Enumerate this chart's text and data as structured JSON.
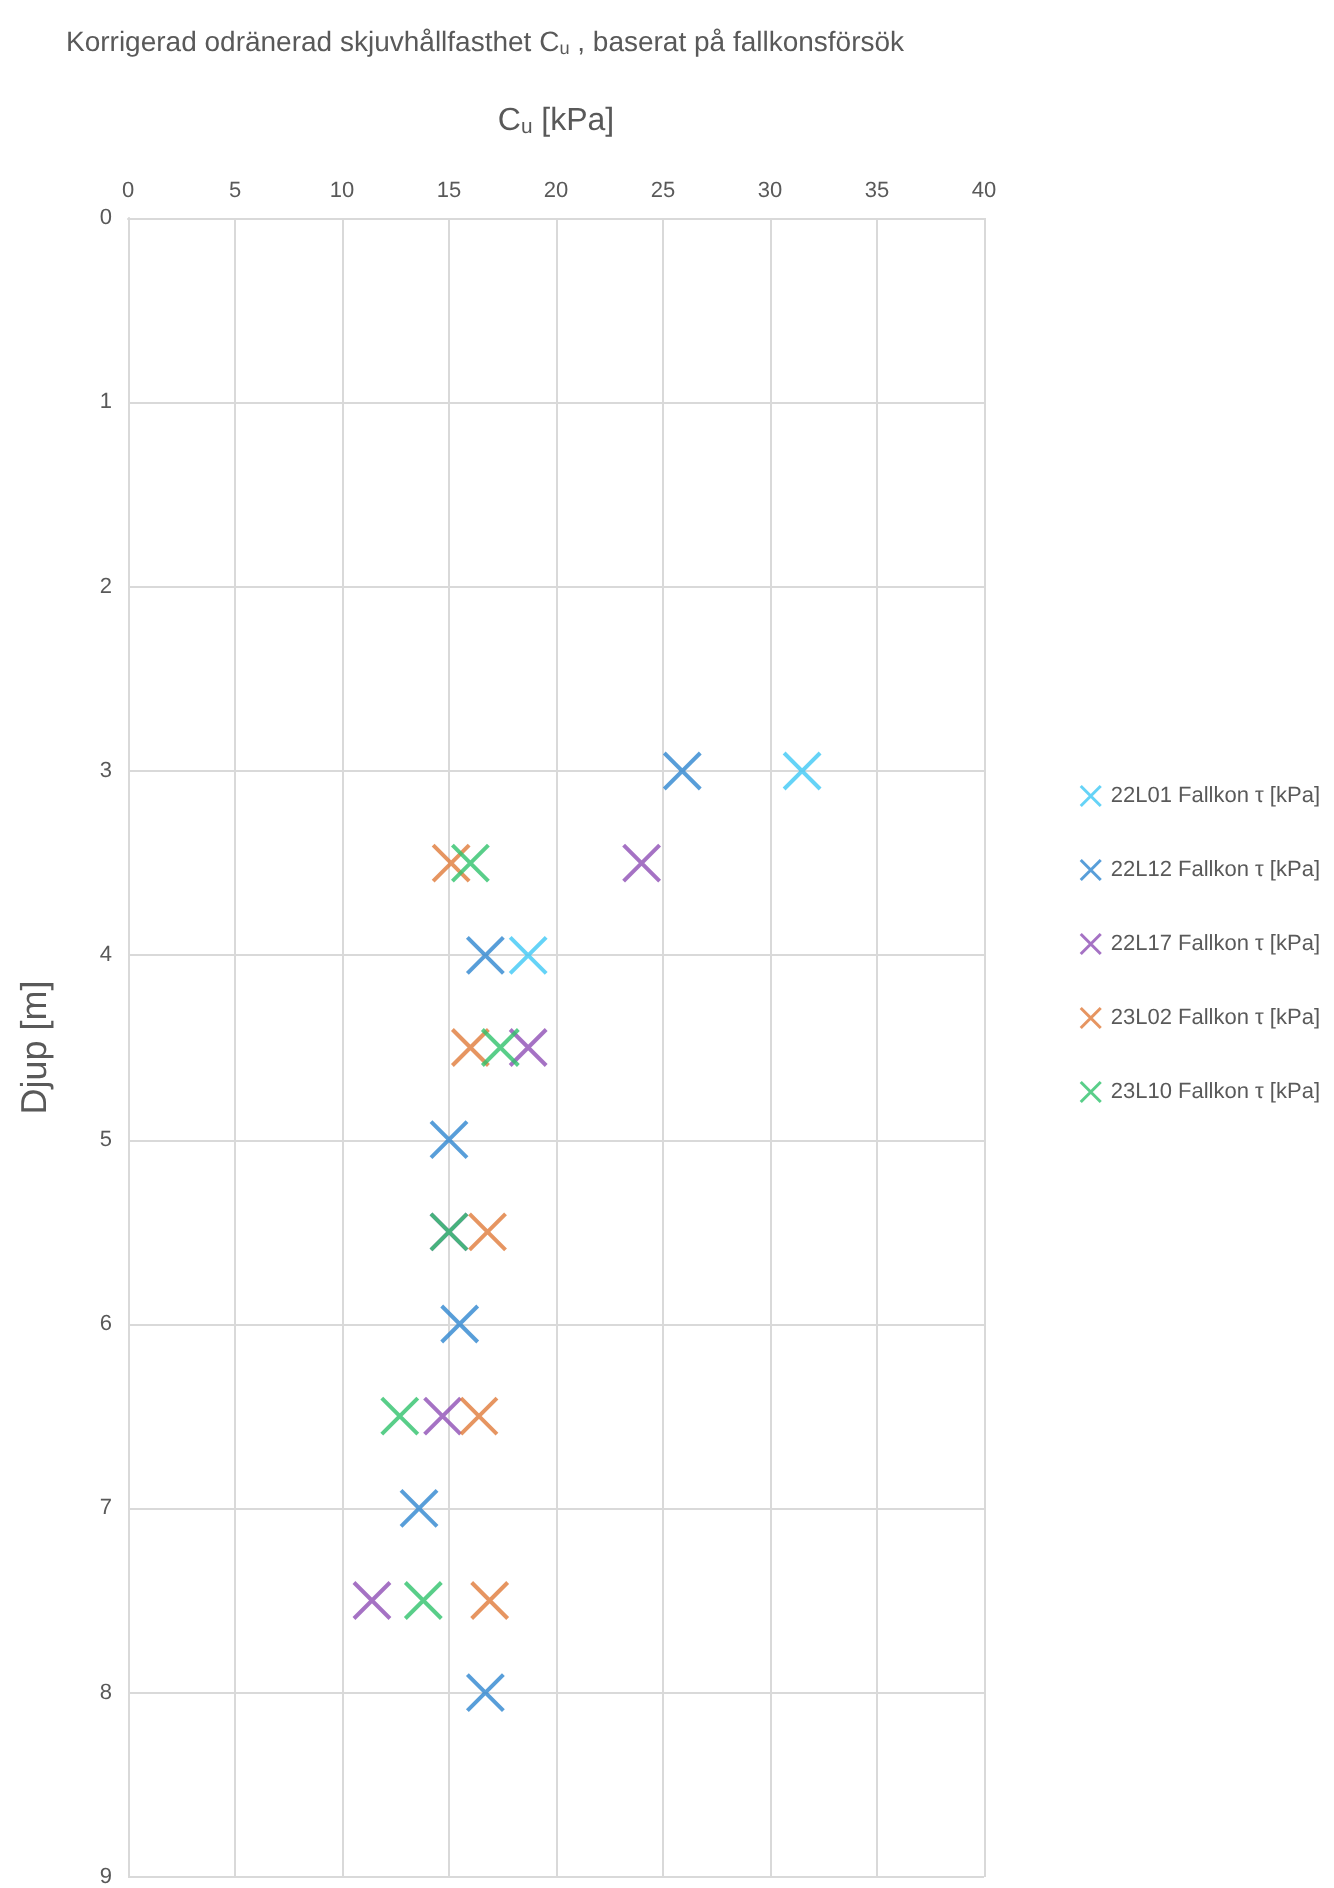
{
  "chart_data": {
    "type": "scatter",
    "title": "Korrigerad odränerad skjuvhållfasthet C$_{u}$ , baserat på fallkonsförsök",
    "xlabel": "C$_{u}$ [kPa]",
    "ylabel": "Djup [m]",
    "xlim": [
      0,
      40
    ],
    "xticks": [
      0,
      5,
      10,
      15,
      20,
      25,
      30,
      35,
      40
    ],
    "ylim": [
      9,
      0
    ],
    "yticks": [
      0,
      1,
      2,
      3,
      4,
      5,
      6,
      7,
      8,
      9
    ],
    "grid": true,
    "legend": "right",
    "marker": "cross",
    "series": [
      {
        "name": "22L01 Fallkon τ [kPa]",
        "color": "#3ec8f5",
        "x": [
          31.5,
          18.7
        ],
        "values": [
          3,
          4
        ]
      },
      {
        "name": "22L12 Fallkon τ [kPa]",
        "color": "#2e86d0",
        "x": [
          25.9,
          16.7,
          15.0,
          15.5,
          13.6,
          16.7
        ],
        "values": [
          3,
          4,
          5,
          6,
          7,
          8
        ]
      },
      {
        "name": "22L17 Fallkon τ [kPa]",
        "color": "#8e4fb5",
        "x": [
          24.0,
          18.7,
          15.0,
          14.7,
          11.4
        ],
        "values": [
          3.5,
          4.5,
          5.5,
          6.5,
          7.5
        ]
      },
      {
        "name": "23L02 Fallkon τ [kPa]",
        "color": "#e07a3a",
        "x": [
          15.1,
          16.0,
          16.8,
          16.4,
          16.9
        ],
        "values": [
          3.5,
          4.5,
          5.5,
          6.5,
          7.5
        ]
      },
      {
        "name": "23L10 Fallkon τ [kPa]",
        "color": "#2fc26c",
        "x": [
          16.0,
          17.4,
          15.0,
          12.7,
          13.8
        ],
        "values": [
          3.5,
          4.5,
          5.5,
          6.5,
          7.5
        ]
      }
    ]
  }
}
